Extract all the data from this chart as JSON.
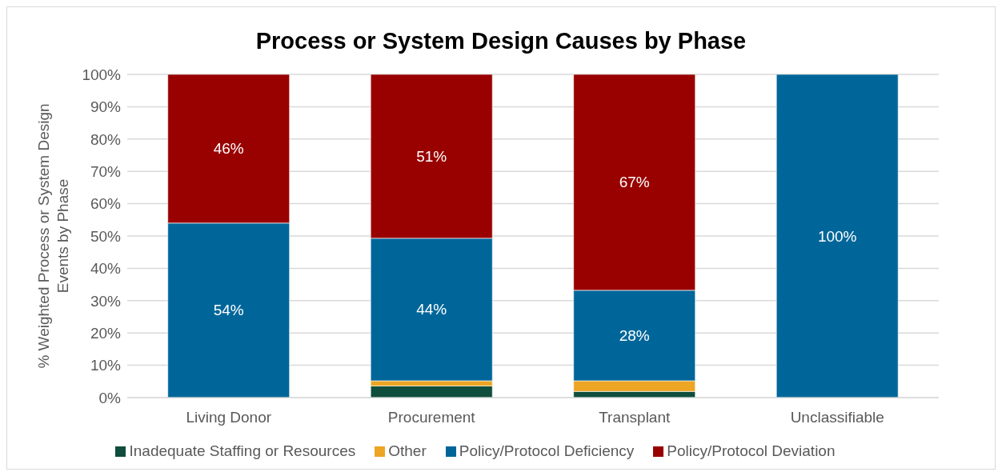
{
  "chart_data": {
    "type": "bar",
    "stacked": true,
    "title": "Process or System Design Causes by Phase",
    "ylabel": "% Weighted Process or System Design Events by Phase",
    "categories": [
      "Living Donor",
      "Procurement",
      "Transplant",
      "Unclassifiable"
    ],
    "series": [
      {
        "name": "Inadequate Staffing or Resources",
        "color": "#0f4d3c",
        "values": [
          0,
          3.6,
          1.9,
          0
        ],
        "value_labels": [
          null,
          null,
          null,
          null
        ]
      },
      {
        "name": "Other",
        "color": "#eda524",
        "values": [
          0,
          1.6,
          3.3,
          0
        ],
        "value_labels": [
          null,
          null,
          null,
          null
        ]
      },
      {
        "name": "Policy/Protocol Deficiency",
        "color": "#006699",
        "values": [
          54,
          44.1,
          28,
          100
        ],
        "value_labels": [
          "54%",
          "44%",
          "28%",
          "100%"
        ]
      },
      {
        "name": "Policy/Protocol Deviation",
        "color": "#990000",
        "values": [
          46,
          50.7,
          66.8,
          0
        ],
        "value_labels": [
          "46%",
          "51%",
          "67%",
          null
        ]
      }
    ],
    "ylim": [
      0,
      100
    ],
    "yticks": [
      {
        "value": 0,
        "label": "0%"
      },
      {
        "value": 10,
        "label": "10%"
      },
      {
        "value": 20,
        "label": "20%"
      },
      {
        "value": 30,
        "label": "30%"
      },
      {
        "value": 40,
        "label": "40%"
      },
      {
        "value": 50,
        "label": "50%"
      },
      {
        "value": 60,
        "label": "60%"
      },
      {
        "value": 70,
        "label": "70%"
      },
      {
        "value": 80,
        "label": "80%"
      },
      {
        "value": 90,
        "label": "90%"
      },
      {
        "value": 100,
        "label": "100%"
      }
    ],
    "grid": "y",
    "legend": "bottom"
  }
}
